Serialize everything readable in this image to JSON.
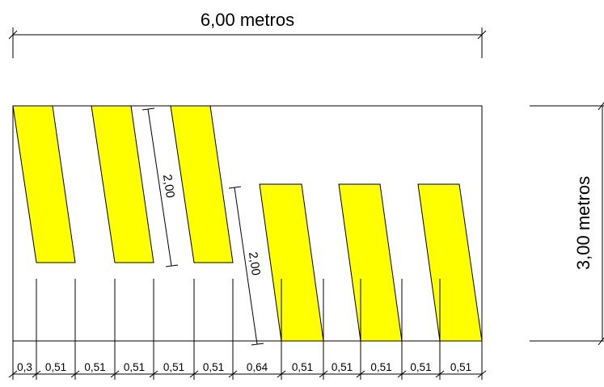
{
  "dimensions": {
    "width_label": "6,00 metros",
    "height_label": "3,00 metros",
    "upper_stripe_length": "2,00",
    "lower_stripe_length": "2,00"
  },
  "bottom_spacings": [
    "0,3",
    "0,51",
    "0,51",
    "0,51",
    "0,51",
    "0,51",
    "0,64",
    "0,51",
    "0,51",
    "0,51",
    "0,51",
    "0,51"
  ],
  "colors": {
    "stripe_fill": "#FFFF00",
    "stripe_stroke": "#000000",
    "line": "#000000",
    "background": "#FFFFFF"
  }
}
